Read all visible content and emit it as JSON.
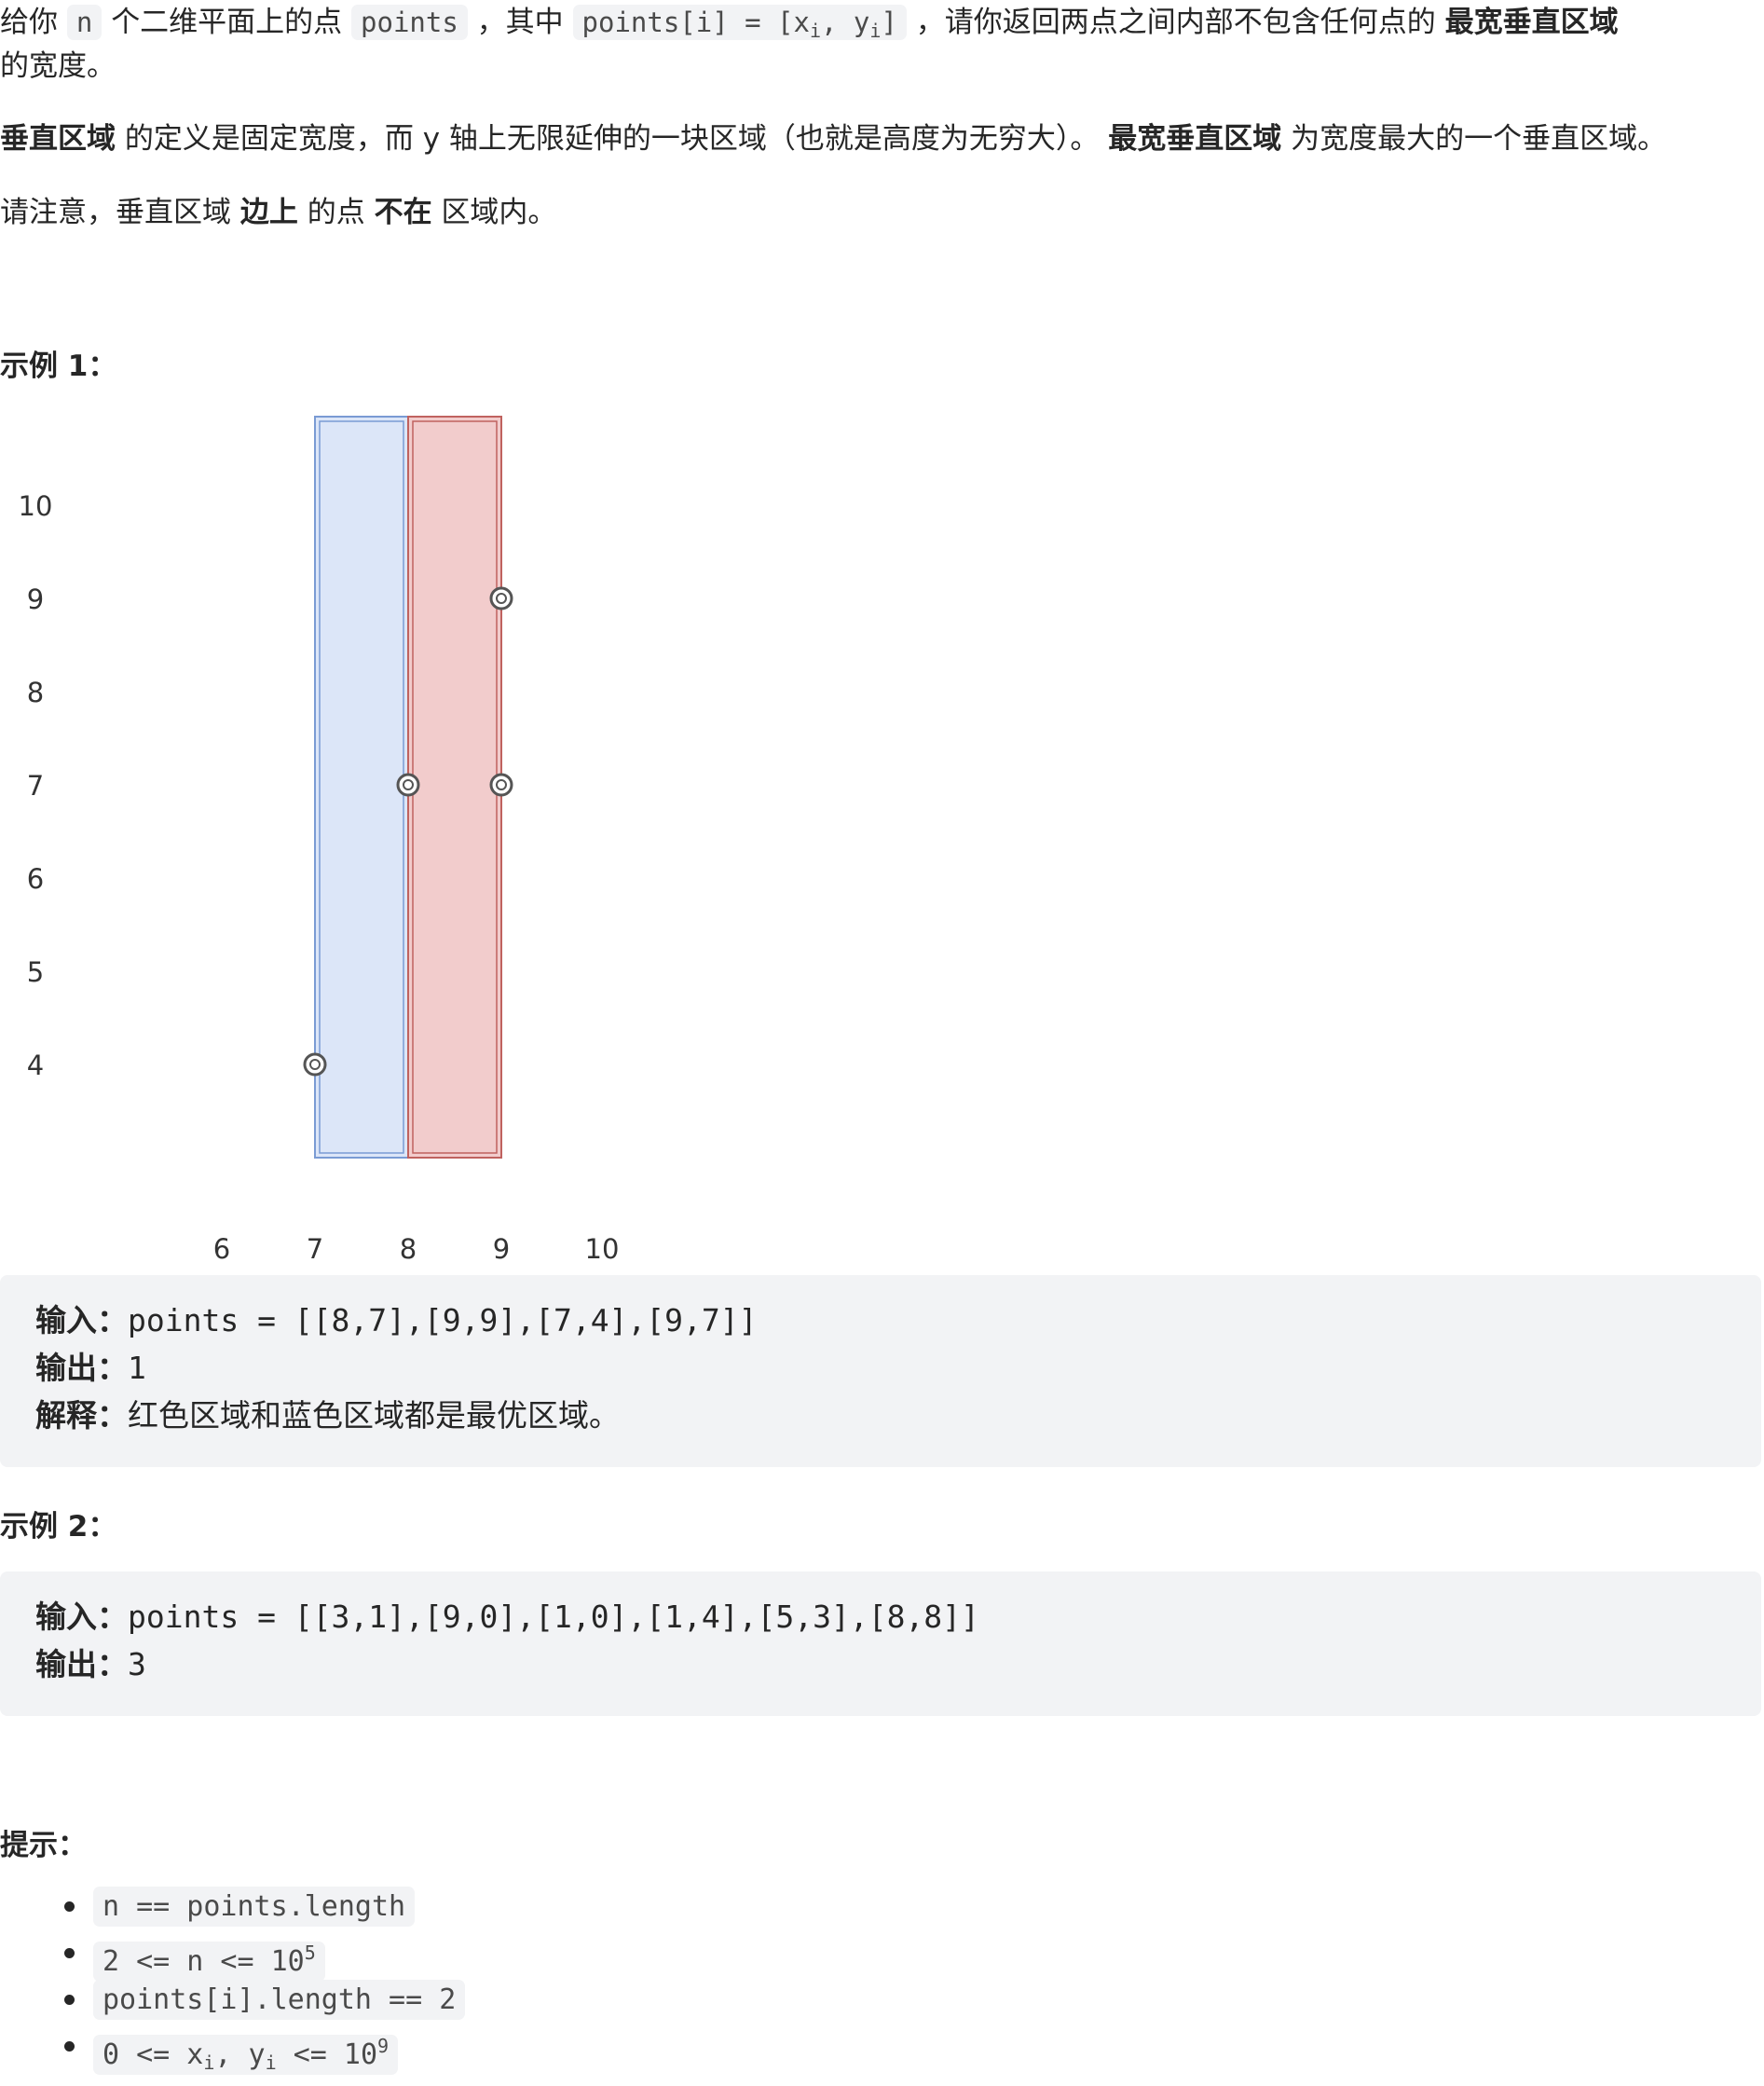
{
  "description": {
    "p1_a": "给你",
    "p1_code_n": "n",
    "p1_b": "个二维平面上的点",
    "p1_code_points": "points",
    "p1_c": "，其中",
    "p1_code_pi": "points[i] = [x",
    "p1_code_sub_i": "i",
    "p1_code_mid": ", y",
    "p1_code_sub_i2": "i",
    "p1_code_end": "]",
    "p1_d": "，请你返回两点之间内部不包含任何点的",
    "p1_bold": "最宽垂直区域",
    "p1_e": "的宽度。",
    "p2_bold1": "垂直区域",
    "p2_a": "的定义是固定宽度，而 y 轴上无限延伸的一块区域（也就是高度为无穷大）。",
    "p2_bold2": "最宽垂直区域",
    "p2_b": "为宽度最大的一个垂直区域。",
    "p3_a": "请注意，垂直区域",
    "p3_bold1": "边上",
    "p3_b": "的点",
    "p3_bold2": "不在",
    "p3_c": "区域内。"
  },
  "example1": {
    "heading": "示例 1：",
    "input_label": "输入：",
    "input_value": "points = [[8,7],[9,9],[7,4],[9,7]]",
    "output_label": "输出：",
    "output_value": "1",
    "explain_label": "解释：",
    "explain_value": "红色区域和蓝色区域都是最优区域。"
  },
  "example2": {
    "heading": "示例 2：",
    "input_label": "输入：",
    "input_value": "points = [[3,1],[9,0],[1,0],[1,4],[5,3],[8,8]]",
    "output_label": "输出：",
    "output_value": "3"
  },
  "hints": {
    "heading": "提示：",
    "items": [
      {
        "code": "n == points.length"
      },
      {
        "code_a": "2 <= n <= 10",
        "sup": "5"
      },
      {
        "code": "points[i].length == 2"
      },
      {
        "code_a": "0 <= x",
        "sub1": "i",
        "code_b": ", y",
        "sub2": "i",
        "code_c": " <= 10",
        "sup": "9"
      }
    ]
  },
  "chart_data": {
    "type": "scatter",
    "x_ticks": [
      "6",
      "7",
      "8",
      "9",
      "10"
    ],
    "y_ticks": [
      "10",
      "9",
      "8",
      "7",
      "6",
      "5",
      "4"
    ],
    "points": [
      {
        "x": 8,
        "y": 7
      },
      {
        "x": 9,
        "y": 9
      },
      {
        "x": 7,
        "y": 4
      },
      {
        "x": 9,
        "y": 7
      }
    ],
    "regions": [
      {
        "name": "blue",
        "x_from": 7,
        "x_to": 8,
        "fill": "#dce6f8",
        "stroke": "#7a9bd4"
      },
      {
        "name": "red",
        "x_from": 8,
        "x_to": 9,
        "fill": "#f2cccc",
        "stroke": "#c0625f"
      }
    ]
  }
}
